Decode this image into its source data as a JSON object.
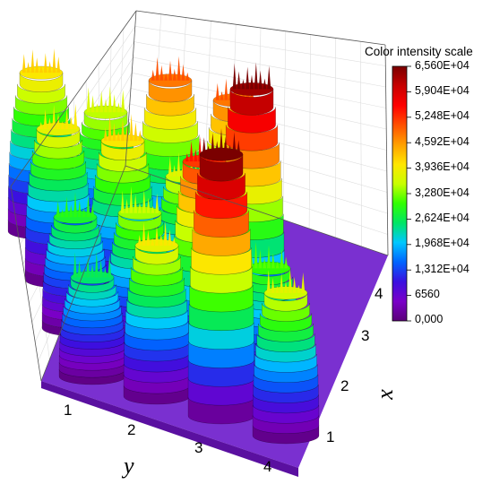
{
  "chart_data": {
    "type": "surface3d",
    "colorbar_title": "Color intensity scale",
    "colorbar_ticks": [
      "6,560E+04",
      "5,904E+04",
      "5,248E+04",
      "4,592E+04",
      "3,936E+04",
      "3,280E+04",
      "2,624E+04",
      "1,968E+04",
      "1,312E+04",
      "6560",
      "0,000"
    ],
    "colorbar_range": [
      0,
      65600
    ],
    "xlabel": "x",
    "ylabel": "y",
    "x_ticks": [
      "1",
      "2",
      "3",
      "4"
    ],
    "y_ticks": [
      "1",
      "2",
      "3",
      "4"
    ],
    "grid": true,
    "peaks": [
      {
        "x": 4,
        "y": 1,
        "value": 40000
      },
      {
        "x": 4,
        "y": 2,
        "value": 35000
      },
      {
        "x": 4,
        "y": 3,
        "value": 48000
      },
      {
        "x": 4,
        "y": 4,
        "value": 48000
      },
      {
        "x": 3,
        "y": 1,
        "value": 38000
      },
      {
        "x": 3,
        "y": 2,
        "value": 40000
      },
      {
        "x": 3,
        "y": 3,
        "value": 36000
      },
      {
        "x": 3,
        "y": 4,
        "value": 63000
      },
      {
        "x": 2,
        "y": 1,
        "value": 28000
      },
      {
        "x": 2,
        "y": 2,
        "value": 34000
      },
      {
        "x": 2,
        "y": 3,
        "value": 52000
      },
      {
        "x": 2,
        "y": 4,
        "value": 30000
      },
      {
        "x": 1,
        "y": 1,
        "value": 25000
      },
      {
        "x": 1,
        "y": 2,
        "value": 38000
      },
      {
        "x": 1,
        "y": 3,
        "value": 66000
      },
      {
        "x": 1,
        "y": 4,
        "value": 36000
      }
    ]
  },
  "colors": {
    "stops": [
      "#5a0078",
      "#7a00c8",
      "#3a10e0",
      "#0064ff",
      "#00c8ff",
      "#00e664",
      "#32ff00",
      "#c8ff00",
      "#ffe600",
      "#ffa000",
      "#ff5000",
      "#ff0000",
      "#c80000",
      "#7a0000"
    ],
    "floor": "#7a30d0",
    "frame": "#555555",
    "grid": "#dddddd"
  }
}
